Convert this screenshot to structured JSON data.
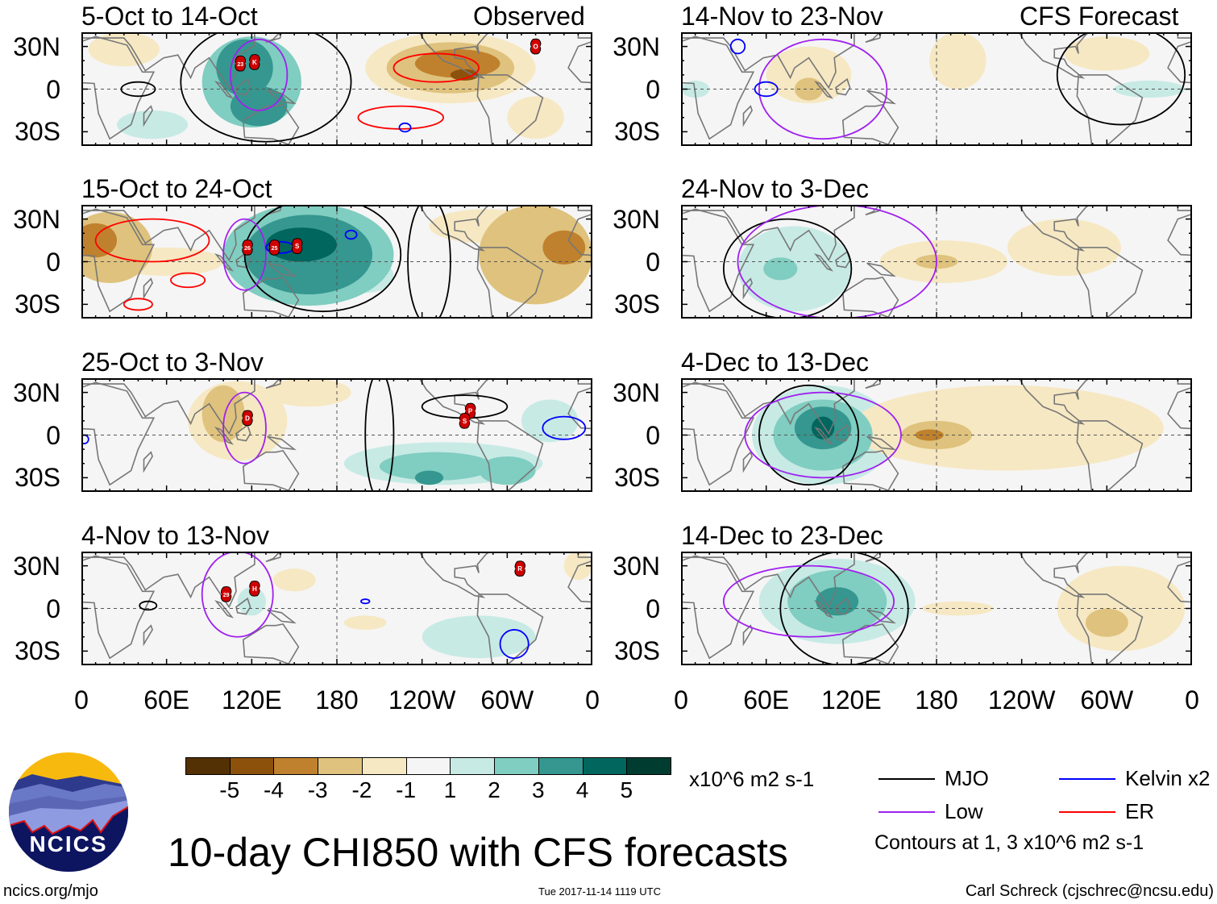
{
  "figure": {
    "title": "10-day CHI850 with CFS forecasts",
    "column_labels": {
      "left": "Observed",
      "right": "CFS Forecast"
    },
    "units": "x10^6 m2 s-1",
    "contour_note": "Contours at 1, 3 x10^6 m2 s-1",
    "footer": {
      "url": "ncics.org/mjo",
      "timestamp": "Tue 2017-11-14 1119 UTC",
      "credit": "Carl Schreck (cjschrec@ncsu.edu)"
    },
    "logo_text": "NCICS"
  },
  "axes": {
    "lat_labels": [
      "30N",
      "0",
      "30S"
    ],
    "lat_values": [
      30,
      0,
      -30
    ],
    "lon_labels": [
      "0",
      "60E",
      "120E",
      "180",
      "120W",
      "60W",
      "0"
    ],
    "lon_values": [
      0,
      60,
      120,
      180,
      240,
      300,
      360
    ],
    "lat_range": [
      -40,
      40
    ]
  },
  "colorbar": {
    "colors": [
      "#543005",
      "#8c510a",
      "#bf812d",
      "#dfc27d",
      "#f6e8c3",
      "#f5f5f5",
      "#c7eae5",
      "#80cdc1",
      "#35978f",
      "#01665e",
      "#003c30"
    ],
    "labels": [
      "-5",
      "-4",
      "-3",
      "-2",
      "-1",
      "1",
      "2",
      "3",
      "4",
      "5"
    ]
  },
  "legend": [
    {
      "label": "MJO",
      "color": "#000000"
    },
    {
      "label": "Low",
      "color": "#a020f0"
    },
    {
      "label": "Kelvin x2",
      "color": "#0000ff"
    },
    {
      "label": "ER",
      "color": "#ff0000"
    }
  ],
  "chart_data": [
    {
      "type": "map",
      "title": "5-Oct to 14-Oct",
      "column": "Observed",
      "anomalies": [
        {
          "lon": 120,
          "lat": 5,
          "rx": 35,
          "ry": 32,
          "level": 2
        },
        {
          "lon": 50,
          "lat": -25,
          "rx": 25,
          "ry": 10,
          "level": 1
        },
        {
          "lon": 115,
          "lat": 15,
          "rx": 20,
          "ry": 20,
          "level": 3
        },
        {
          "lon": 125,
          "lat": -12,
          "rx": 20,
          "ry": 14,
          "level": 3
        },
        {
          "lon": 260,
          "lat": 15,
          "rx": 60,
          "ry": 25,
          "level": -1
        },
        {
          "lon": 260,
          "lat": 15,
          "rx": 45,
          "ry": 18,
          "level": -2
        },
        {
          "lon": 265,
          "lat": 18,
          "rx": 30,
          "ry": 10,
          "level": -3
        },
        {
          "lon": 270,
          "lat": 10,
          "rx": 10,
          "ry": 4,
          "level": -4
        },
        {
          "lon": 320,
          "lat": -20,
          "rx": 20,
          "ry": 15,
          "level": -1
        },
        {
          "lon": 30,
          "lat": 28,
          "rx": 25,
          "ry": 12,
          "level": -1
        }
      ],
      "contours": [
        {
          "type": "MJO",
          "lon": 130,
          "lat": 5,
          "rx": 60,
          "ry": 42
        },
        {
          "type": "MJO",
          "lon": 40,
          "lat": 0,
          "rx": 12,
          "ry": 5
        },
        {
          "type": "Low",
          "lon": 125,
          "lat": 10,
          "rx": 20,
          "ry": 25
        },
        {
          "type": "ER",
          "lon": 250,
          "lat": 15,
          "rx": 30,
          "ry": 10
        },
        {
          "type": "ER",
          "lon": 225,
          "lat": -20,
          "rx": 30,
          "ry": 8
        },
        {
          "type": "Kelvin",
          "lon": 228,
          "lat": -27,
          "rx": 4,
          "ry": 3
        }
      ],
      "storms": [
        {
          "lon": 112,
          "lat": 18,
          "label": "23"
        },
        {
          "lon": 122,
          "lat": 19,
          "label": "K"
        },
        {
          "lon": 320,
          "lat": 30,
          "label": "O"
        }
      ]
    },
    {
      "type": "map",
      "title": "15-Oct to 24-Oct",
      "column": "Observed",
      "anomalies": [
        {
          "lon": 160,
          "lat": 5,
          "rx": 60,
          "ry": 36,
          "level": 2
        },
        {
          "lon": 160,
          "lat": 5,
          "rx": 45,
          "ry": 28,
          "level": 3
        },
        {
          "lon": 155,
          "lat": 12,
          "rx": 25,
          "ry": 12,
          "level": 4
        },
        {
          "lon": 200,
          "lat": -10,
          "rx": 20,
          "ry": 12,
          "level": 1
        },
        {
          "lon": 60,
          "lat": 0,
          "rx": 40,
          "ry": 10,
          "level": -1
        },
        {
          "lon": 20,
          "lat": 10,
          "rx": 30,
          "ry": 25,
          "level": -2
        },
        {
          "lon": 10,
          "lat": 15,
          "rx": 15,
          "ry": 12,
          "level": -3
        },
        {
          "lon": 320,
          "lat": 5,
          "rx": 40,
          "ry": 35,
          "level": -2
        },
        {
          "lon": 340,
          "lat": 10,
          "rx": 15,
          "ry": 12,
          "level": -3
        },
        {
          "lon": 285,
          "lat": 25,
          "rx": 40,
          "ry": 12,
          "level": -1
        }
      ],
      "contours": [
        {
          "type": "MJO",
          "lon": 170,
          "lat": 5,
          "rx": 55,
          "ry": 40
        },
        {
          "type": "MJO",
          "lon": 245,
          "lat": 0,
          "rx": 15,
          "ry": 45
        },
        {
          "type": "Low",
          "lon": 115,
          "lat": 5,
          "rx": 15,
          "ry": 25
        },
        {
          "type": "ER",
          "lon": 75,
          "lat": -13,
          "rx": 12,
          "ry": 5
        },
        {
          "type": "ER",
          "lon": 40,
          "lat": -30,
          "rx": 10,
          "ry": 4
        },
        {
          "type": "ER",
          "lon": 50,
          "lat": 15,
          "rx": 40,
          "ry": 15
        },
        {
          "type": "Kelvin",
          "lon": 140,
          "lat": 10,
          "rx": 10,
          "ry": 4
        },
        {
          "type": "Kelvin",
          "lon": 190,
          "lat": 19,
          "rx": 4,
          "ry": 3
        }
      ],
      "storms": [
        {
          "lon": 117,
          "lat": 10,
          "label": "26"
        },
        {
          "lon": 136,
          "lat": 10,
          "label": "25"
        },
        {
          "lon": 152,
          "lat": 11,
          "label": "S"
        }
      ]
    },
    {
      "type": "map",
      "title": "25-Oct to 3-Nov",
      "column": "Observed",
      "anomalies": [
        {
          "lon": 110,
          "lat": 10,
          "rx": 35,
          "ry": 28,
          "level": -1
        },
        {
          "lon": 100,
          "lat": 15,
          "rx": 15,
          "ry": 20,
          "level": -2
        },
        {
          "lon": 160,
          "lat": 30,
          "rx": 30,
          "ry": 10,
          "level": -1
        },
        {
          "lon": 255,
          "lat": -20,
          "rx": 70,
          "ry": 15,
          "level": 1
        },
        {
          "lon": 250,
          "lat": -22,
          "rx": 40,
          "ry": 10,
          "level": 2
        },
        {
          "lon": 245,
          "lat": -30,
          "rx": 10,
          "ry": 5,
          "level": 3
        },
        {
          "lon": 300,
          "lat": -25,
          "rx": 20,
          "ry": 10,
          "level": 2
        },
        {
          "lon": 330,
          "lat": 10,
          "rx": 20,
          "ry": 15,
          "level": 1
        }
      ],
      "contours": [
        {
          "type": "Low",
          "lon": 115,
          "lat": 5,
          "rx": 15,
          "ry": 25
        },
        {
          "type": "MJO",
          "lon": 270,
          "lat": 20,
          "rx": 30,
          "ry": 8
        },
        {
          "type": "MJO",
          "lon": 210,
          "lat": 0,
          "rx": 10,
          "ry": 45
        },
        {
          "type": "Kelvin",
          "lon": 340,
          "lat": 5,
          "rx": 15,
          "ry": 8
        },
        {
          "type": "Kelvin",
          "lon": 2,
          "lat": -3,
          "rx": 3,
          "ry": 3
        }
      ],
      "storms": [
        {
          "lon": 117,
          "lat": 12,
          "label": "D"
        },
        {
          "lon": 274,
          "lat": 17,
          "label": "P"
        },
        {
          "lon": 270,
          "lat": 10,
          "label": "S"
        }
      ]
    },
    {
      "type": "map",
      "title": "4-Nov to 13-Nov",
      "column": "Observed",
      "anomalies": [
        {
          "lon": 280,
          "lat": -20,
          "rx": 40,
          "ry": 15,
          "level": 1
        },
        {
          "lon": 120,
          "lat": 5,
          "rx": 10,
          "ry": 10,
          "level": 1
        },
        {
          "lon": 150,
          "lat": 20,
          "rx": 15,
          "ry": 8,
          "level": -1
        },
        {
          "lon": 200,
          "lat": -10,
          "rx": 15,
          "ry": 5,
          "level": -1
        },
        {
          "lon": 350,
          "lat": 30,
          "rx": 10,
          "ry": 10,
          "level": -1
        }
      ],
      "contours": [
        {
          "type": "Low",
          "lon": 110,
          "lat": 10,
          "rx": 25,
          "ry": 30
        },
        {
          "type": "Kelvin",
          "lon": 305,
          "lat": -25,
          "rx": 10,
          "ry": 10
        },
        {
          "type": "Kelvin",
          "lon": 200,
          "lat": 5,
          "rx": 3,
          "ry": 1.5
        },
        {
          "type": "MJO",
          "lon": 47,
          "lat": 2,
          "rx": 6,
          "ry": 3
        }
      ],
      "storms": [
        {
          "lon": 102,
          "lat": 10,
          "label": "29"
        },
        {
          "lon": 122,
          "lat": 14,
          "label": "H"
        },
        {
          "lon": 309,
          "lat": 28,
          "label": "R"
        }
      ]
    },
    {
      "type": "map",
      "title": "14-Nov to 23-Nov",
      "column": "CFS Forecast",
      "anomalies": [
        {
          "lon": 90,
          "lat": 10,
          "rx": 30,
          "ry": 20,
          "level": -1
        },
        {
          "lon": 90,
          "lat": 0,
          "rx": 10,
          "ry": 8,
          "level": -2
        },
        {
          "lon": 195,
          "lat": 20,
          "rx": 20,
          "ry": 20,
          "level": -1
        },
        {
          "lon": 300,
          "lat": 25,
          "rx": 30,
          "ry": 12,
          "level": -1
        },
        {
          "lon": 330,
          "lat": 0,
          "rx": 25,
          "ry": 6,
          "level": 1
        },
        {
          "lon": 10,
          "lat": 0,
          "rx": 10,
          "ry": 6,
          "level": 1
        }
      ],
      "contours": [
        {
          "type": "Low",
          "lon": 100,
          "lat": 0,
          "rx": 45,
          "ry": 35
        },
        {
          "type": "MJO",
          "lon": 310,
          "lat": 10,
          "rx": 45,
          "ry": 35
        },
        {
          "type": "Kelvin",
          "lon": 60,
          "lat": 0,
          "rx": 8,
          "ry": 5
        },
        {
          "type": "Kelvin",
          "lon": 40,
          "lat": 30,
          "rx": 5,
          "ry": 5
        }
      ],
      "storms": []
    },
    {
      "type": "map",
      "title": "24-Nov to 3-Dec",
      "column": "CFS Forecast",
      "anomalies": [
        {
          "lon": 80,
          "lat": -5,
          "rx": 40,
          "ry": 30,
          "level": 1
        },
        {
          "lon": 70,
          "lat": -5,
          "rx": 12,
          "ry": 8,
          "level": 2
        },
        {
          "lon": 185,
          "lat": 0,
          "rx": 45,
          "ry": 15,
          "level": -1
        },
        {
          "lon": 180,
          "lat": 0,
          "rx": 15,
          "ry": 5,
          "level": -2
        },
        {
          "lon": 270,
          "lat": 10,
          "rx": 40,
          "ry": 20,
          "level": -1
        }
      ],
      "contours": [
        {
          "type": "MJO",
          "lon": 75,
          "lat": -5,
          "rx": 45,
          "ry": 35
        },
        {
          "type": "Low",
          "lon": 110,
          "lat": 0,
          "rx": 70,
          "ry": 40
        }
      ],
      "storms": []
    },
    {
      "type": "map",
      "title": "4-Dec to 13-Dec",
      "column": "CFS Forecast",
      "anomalies": [
        {
          "lon": 100,
          "lat": 0,
          "rx": 50,
          "ry": 35,
          "level": 1
        },
        {
          "lon": 100,
          "lat": 0,
          "rx": 35,
          "ry": 25,
          "level": 2
        },
        {
          "lon": 100,
          "lat": 5,
          "rx": 20,
          "ry": 15,
          "level": 3
        },
        {
          "lon": 100,
          "lat": 5,
          "rx": 8,
          "ry": 8,
          "level": 4
        },
        {
          "lon": 230,
          "lat": 5,
          "rx": 110,
          "ry": 30,
          "level": -1
        },
        {
          "lon": 180,
          "lat": 0,
          "rx": 25,
          "ry": 10,
          "level": -2
        },
        {
          "lon": 175,
          "lat": 0,
          "rx": 10,
          "ry": 4,
          "level": -3
        }
      ],
      "contours": [
        {
          "type": "MJO",
          "lon": 90,
          "lat": 0,
          "rx": 35,
          "ry": 35
        },
        {
          "type": "Low",
          "lon": 100,
          "lat": 0,
          "rx": 55,
          "ry": 30
        }
      ],
      "storms": []
    },
    {
      "type": "map",
      "title": "14-Dec to 23-Dec",
      "column": "CFS Forecast",
      "anomalies": [
        {
          "lon": 110,
          "lat": 5,
          "rx": 55,
          "ry": 30,
          "level": 1
        },
        {
          "lon": 110,
          "lat": 5,
          "rx": 35,
          "ry": 22,
          "level": 2
        },
        {
          "lon": 110,
          "lat": 5,
          "rx": 15,
          "ry": 10,
          "level": 3
        },
        {
          "lon": 195,
          "lat": 0,
          "rx": 25,
          "ry": 5,
          "level": -1
        },
        {
          "lon": 310,
          "lat": 0,
          "rx": 45,
          "ry": 30,
          "level": -1
        },
        {
          "lon": 300,
          "lat": -10,
          "rx": 15,
          "ry": 10,
          "level": -2
        }
      ],
      "contours": [
        {
          "type": "MJO",
          "lon": 115,
          "lat": 0,
          "rx": 45,
          "ry": 40
        },
        {
          "type": "Low",
          "lon": 90,
          "lat": 5,
          "rx": 60,
          "ry": 25
        }
      ],
      "storms": []
    }
  ]
}
